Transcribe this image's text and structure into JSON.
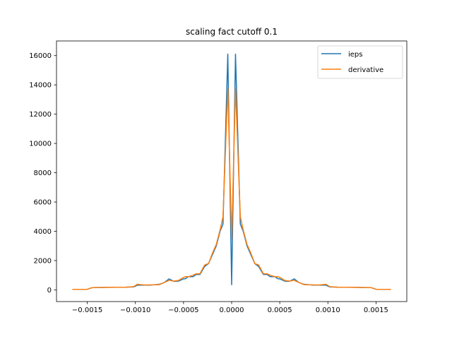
{
  "chart_data": {
    "type": "line",
    "title": "scaling fact cutoff 0.1",
    "xlabel": "",
    "ylabel": "",
    "xlim": [
      -0.00182,
      0.00182
    ],
    "ylim": [
      -800,
      17000
    ],
    "grid": false,
    "legend_position": "top-right",
    "x_ticks": [
      -0.0015,
      -0.001,
      -0.0005,
      0.0,
      0.0005,
      0.001,
      0.0015
    ],
    "x_tick_labels": [
      "−0.0015",
      "−0.0010",
      "−0.0005",
      "0.0000",
      "0.0005",
      "0.0010",
      "0.0015"
    ],
    "y_ticks": [
      0,
      2000,
      4000,
      6000,
      8000,
      10000,
      12000,
      14000,
      16000
    ],
    "y_tick_labels": [
      "0",
      "2000",
      "4000",
      "6000",
      "8000",
      "10000",
      "12000",
      "14000",
      "16000"
    ],
    "series": [
      {
        "name": "ieps",
        "color": "#1f77b4",
        "x": [
          -0.00165,
          -0.0015,
          -0.00145,
          -0.0013,
          -0.0011,
          -0.00102,
          -0.00098,
          -0.0009,
          -0.00085,
          -0.00075,
          -0.0007,
          -0.00065,
          -0.0006,
          -0.00055,
          -0.0005,
          -0.00048,
          -0.00045,
          -0.0004,
          -0.00037,
          -0.00033,
          -0.00028,
          -0.00024,
          -0.0002,
          -0.00016,
          -0.00012,
          -9e-05,
          -4e-05,
          0.0,
          4e-05,
          9e-05,
          0.00012,
          0.00016,
          0.0002,
          0.00024,
          0.00028,
          0.00033,
          0.00037,
          0.0004,
          0.00045,
          0.00048,
          0.0005,
          0.00055,
          0.0006,
          0.00065,
          0.0007,
          0.00075,
          0.00085,
          0.0009,
          0.00098,
          0.00102,
          0.0011,
          0.0013,
          0.00145,
          0.0015,
          0.00165
        ],
        "y": [
          30,
          40,
          150,
          170,
          180,
          200,
          320,
          330,
          320,
          380,
          500,
          750,
          580,
          600,
          750,
          760,
          900,
          900,
          1050,
          1050,
          1600,
          1800,
          2400,
          3000,
          4000,
          4500,
          16100,
          350,
          16100,
          4500,
          4000,
          3000,
          2400,
          1800,
          1600,
          1050,
          1050,
          900,
          900,
          760,
          750,
          600,
          580,
          750,
          500,
          380,
          320,
          330,
          320,
          200,
          180,
          170,
          150,
          40,
          30
        ]
      },
      {
        "name": "derivative",
        "color": "#ff7f0e",
        "x": [
          -0.00165,
          -0.0015,
          -0.00145,
          -0.0013,
          -0.0011,
          -0.00102,
          -0.00098,
          -0.0009,
          -0.00085,
          -0.00075,
          -0.0007,
          -0.00065,
          -0.0006,
          -0.00055,
          -0.0005,
          -0.00048,
          -0.00045,
          -0.0004,
          -0.00037,
          -0.00033,
          -0.00028,
          -0.00024,
          -0.0002,
          -0.00016,
          -0.00012,
          -9e-05,
          -4e-05,
          0.0,
          4e-05,
          9e-05,
          0.00012,
          0.00016,
          0.0002,
          0.00024,
          0.00028,
          0.00033,
          0.00037,
          0.0004,
          0.00045,
          0.00048,
          0.0005,
          0.00055,
          0.0006,
          0.00065,
          0.0007,
          0.00075,
          0.00085,
          0.0009,
          0.00098,
          0.00102,
          0.0011,
          0.0013,
          0.00145,
          0.0015,
          0.00165
        ],
        "y": [
          30,
          40,
          150,
          170,
          180,
          220,
          380,
          330,
          340,
          360,
          500,
          650,
          600,
          650,
          850,
          900,
          900,
          1000,
          1100,
          1100,
          1700,
          1800,
          2500,
          3100,
          4100,
          5000,
          13800,
          3500,
          13800,
          5000,
          4100,
          3100,
          2500,
          1800,
          1700,
          1100,
          1100,
          1000,
          900,
          900,
          850,
          650,
          600,
          650,
          500,
          360,
          340,
          330,
          380,
          220,
          180,
          170,
          150,
          40,
          30
        ]
      }
    ]
  }
}
